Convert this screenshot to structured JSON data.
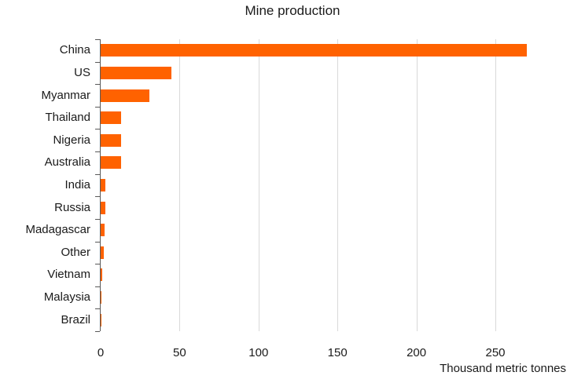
{
  "chart_data": {
    "type": "bar",
    "orientation": "horizontal",
    "title": "Mine production",
    "xlabel": "Thousand metric tonnes",
    "categories": [
      "China",
      "US",
      "Myanmar",
      "Thailand",
      "Nigeria",
      "Australia",
      "India",
      "Russia",
      "Madagascar",
      "Other",
      "Vietnam",
      "Malaysia",
      "Brazil"
    ],
    "values": [
      270,
      45,
      31,
      13,
      13,
      13,
      3,
      2.8,
      2.4,
      1.9,
      0.8,
      0.7,
      0.6
    ],
    "x_ticks": [
      0,
      50,
      100,
      150,
      200,
      250
    ],
    "xlim": [
      0,
      295
    ],
    "grid": "vertical-gridlines-only",
    "legend": "none",
    "colors": {
      "bar": "#ff6200",
      "axis": "#595959",
      "gridline": "#d9d9d9",
      "text": "#1a1a1a"
    }
  }
}
